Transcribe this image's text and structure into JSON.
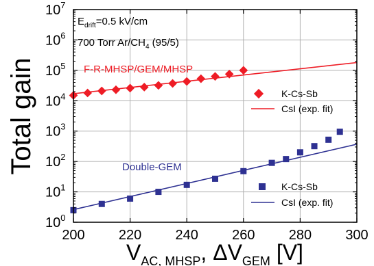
{
  "chart_data": {
    "type": "scatter",
    "ylabel": "Total gain",
    "xlabel": {
      "part1": "V",
      "part1_sub": "AC, MHSP",
      "part2": ", ΔV",
      "part2_sub": "GEM",
      "part3": " [V]"
    },
    "xlim": [
      200,
      300
    ],
    "ylim": [
      1,
      10000000
    ],
    "y_scale": "log",
    "grid": true,
    "x_ticks": [
      "200",
      "220",
      "240",
      "260",
      "280",
      "300"
    ],
    "y_tick_exponents": [
      "0",
      "1",
      "2",
      "3",
      "4",
      "5",
      "6",
      "7"
    ],
    "y_tick_base": "10",
    "annotations": {
      "field": {
        "prefix": "E",
        "sub": "drift",
        "suffix": "=0.5 kV/cm"
      },
      "gas": {
        "prefix": "700 Torr Ar/CH",
        "sub": "4",
        "suffix": " (95/5)"
      }
    },
    "series": [
      {
        "name": "K-Cs-Sb",
        "group_label": "F-R-MHSP/GEM/MHSP",
        "color": "#ee1c25",
        "marker": "diamond",
        "x": [
          200,
          205,
          210,
          215,
          220,
          225,
          230,
          235,
          240,
          245,
          250,
          255,
          260
        ],
        "y": [
          15000,
          18000,
          21000,
          23000,
          26000,
          28000,
          32000,
          37000,
          43000,
          53000,
          63000,
          75000,
          100000
        ]
      },
      {
        "name": "CsI (exp. fit)",
        "color": "#ee1c25",
        "type": "line",
        "x": [
          200,
          300
        ],
        "y": [
          17000,
          180000
        ]
      },
      {
        "name": "K-Cs-Sb",
        "group_label": "Double-GEM",
        "color": "#2e3192",
        "marker": "square",
        "x": [
          200,
          210,
          220,
          230,
          240,
          250,
          260,
          270,
          275,
          280,
          285,
          290,
          294
        ],
        "y": [
          2.5,
          4,
          6,
          10,
          17,
          27,
          48,
          90,
          120,
          200,
          320,
          520,
          950
        ]
      },
      {
        "name": "CsI (exp. fit)",
        "color": "#2e3192",
        "type": "line",
        "x": [
          200,
          300
        ],
        "y": [
          2.6,
          370
        ]
      }
    ],
    "legends": [
      {
        "placement": "right-middle-upper",
        "items": [
          "K-Cs-Sb",
          "CsI (exp. fit)"
        ]
      },
      {
        "placement": "bottom-right",
        "items": [
          "K-Cs-Sb",
          "CsI (exp. fit)"
        ]
      }
    ]
  }
}
